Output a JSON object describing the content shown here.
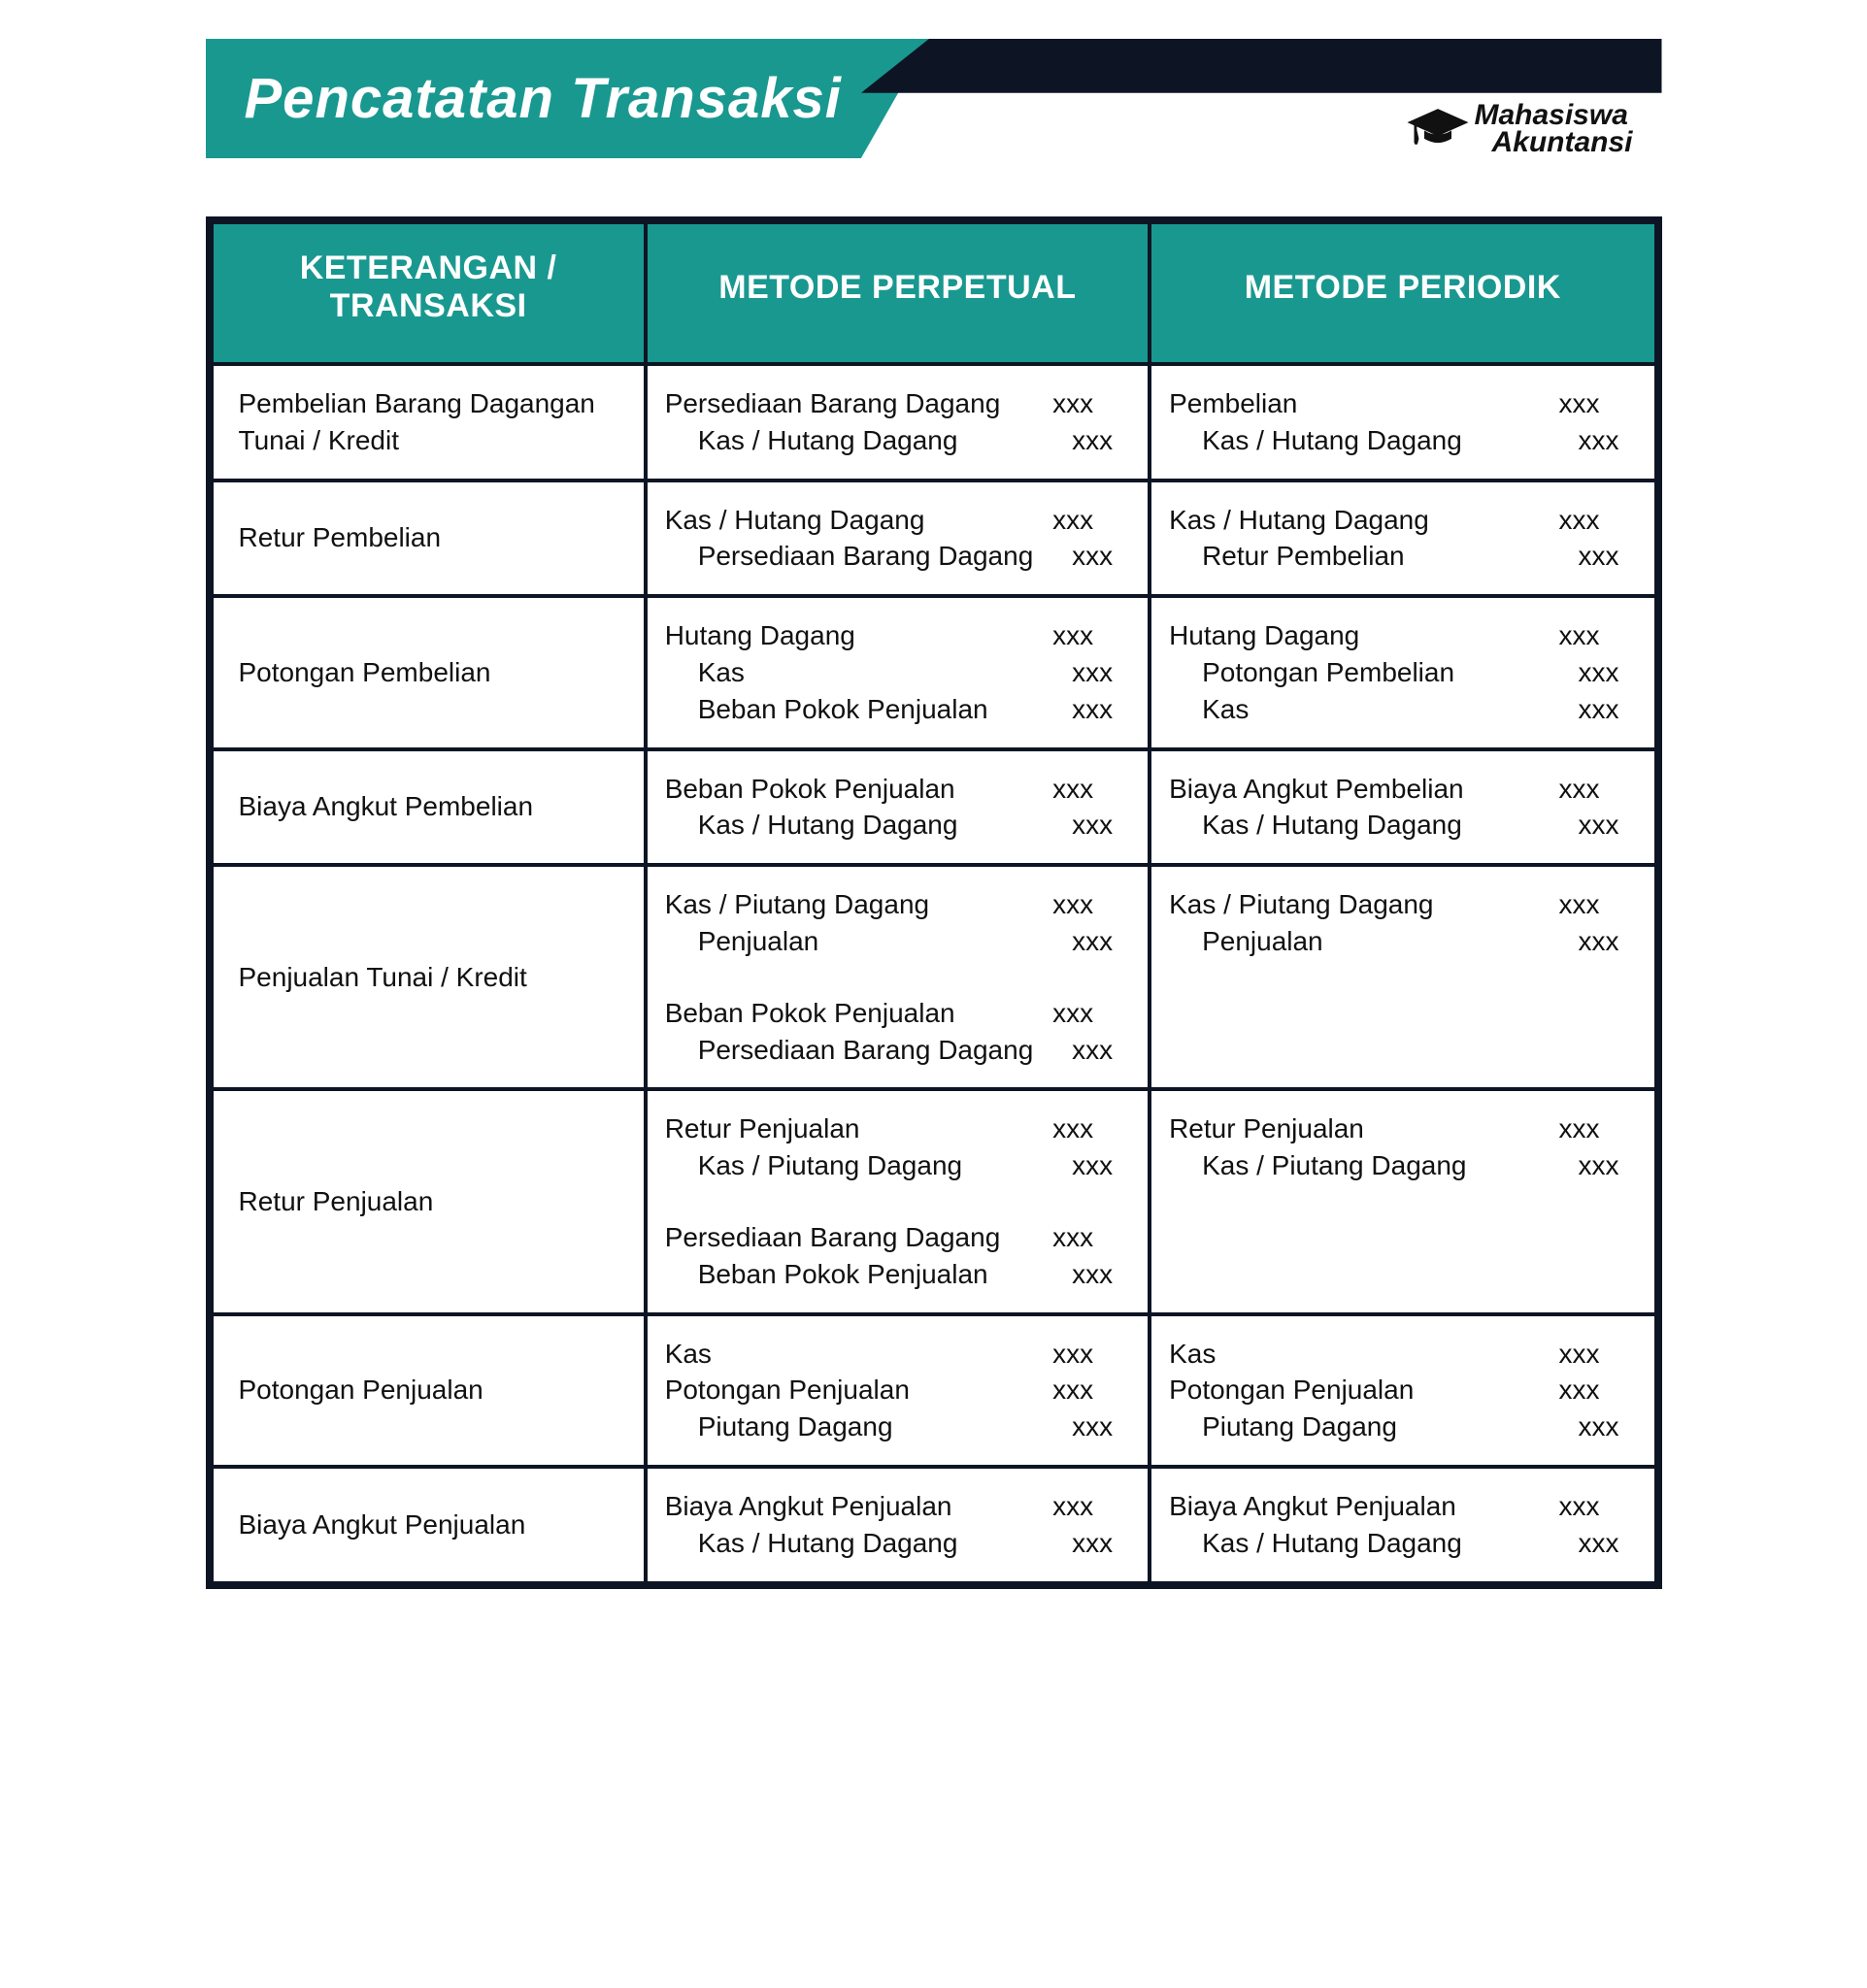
{
  "colors": {
    "teal": "#199890",
    "dark": "#0d1524",
    "white": "#ffffff",
    "text": "#111111"
  },
  "header": {
    "title": "Pencatatan Transaksi",
    "logo_line1": "Mahasiswa",
    "logo_line2": "Akuntansi"
  },
  "table": {
    "columns": [
      "KETERANGAN / TRANSAKSI",
      "METODE PERPETUAL",
      "METODE PERIODIK"
    ],
    "placeholder": "xxx",
    "rows": [
      {
        "transaction": "Pembelian Barang Dagangan Tunai / Kredit",
        "perpetual": [
          [
            {
              "acct": "Persediaan Barang Dagang",
              "side": "debit"
            },
            {
              "acct": "Kas / Hutang Dagang",
              "side": "credit"
            }
          ]
        ],
        "periodic": [
          [
            {
              "acct": "Pembelian",
              "side": "debit"
            },
            {
              "acct": "Kas / Hutang Dagang",
              "side": "credit"
            }
          ]
        ]
      },
      {
        "transaction": "Retur Pembelian",
        "perpetual": [
          [
            {
              "acct": "Kas / Hutang Dagang",
              "side": "debit"
            },
            {
              "acct": "Persediaan Barang Dagang",
              "side": "credit"
            }
          ]
        ],
        "periodic": [
          [
            {
              "acct": "Kas / Hutang Dagang",
              "side": "debit"
            },
            {
              "acct": "Retur Pembelian",
              "side": "credit"
            }
          ]
        ]
      },
      {
        "transaction": "Potongan Pembelian",
        "perpetual": [
          [
            {
              "acct": "Hutang Dagang",
              "side": "debit"
            },
            {
              "acct": "Kas",
              "side": "credit"
            },
            {
              "acct": "Beban Pokok Penjualan",
              "side": "credit"
            }
          ]
        ],
        "periodic": [
          [
            {
              "acct": "Hutang Dagang",
              "side": "debit"
            },
            {
              "acct": "Potongan Pembelian",
              "side": "credit"
            },
            {
              "acct": "Kas",
              "side": "credit"
            }
          ]
        ]
      },
      {
        "transaction": "Biaya Angkut Pembelian",
        "perpetual": [
          [
            {
              "acct": "Beban Pokok Penjualan",
              "side": "debit"
            },
            {
              "acct": "Kas / Hutang Dagang",
              "side": "credit"
            }
          ]
        ],
        "periodic": [
          [
            {
              "acct": "Biaya Angkut Pembelian",
              "side": "debit"
            },
            {
              "acct": "Kas / Hutang Dagang",
              "side": "credit"
            }
          ]
        ]
      },
      {
        "transaction": "Penjualan Tunai / Kredit",
        "perpetual": [
          [
            {
              "acct": "Kas / Piutang Dagang",
              "side": "debit"
            },
            {
              "acct": "Penjualan",
              "side": "credit"
            }
          ],
          [
            {
              "acct": "Beban Pokok Penjualan",
              "side": "debit"
            },
            {
              "acct": "Persediaan Barang Dagang",
              "side": "credit"
            }
          ]
        ],
        "periodic": [
          [
            {
              "acct": "Kas / Piutang Dagang",
              "side": "debit"
            },
            {
              "acct": "Penjualan",
              "side": "credit"
            }
          ]
        ]
      },
      {
        "transaction": "Retur Penjualan",
        "perpetual": [
          [
            {
              "acct": "Retur Penjualan",
              "side": "debit"
            },
            {
              "acct": "Kas / Piutang Dagang",
              "side": "credit"
            }
          ],
          [
            {
              "acct": "Persediaan Barang Dagang",
              "side": "debit"
            },
            {
              "acct": "Beban Pokok Penjualan",
              "side": "credit"
            }
          ]
        ],
        "periodic": [
          [
            {
              "acct": "Retur Penjualan",
              "side": "debit"
            },
            {
              "acct": "Kas / Piutang Dagang",
              "side": "credit"
            }
          ]
        ]
      },
      {
        "transaction": "Potongan Penjualan",
        "perpetual": [
          [
            {
              "acct": "Kas",
              "side": "debit"
            },
            {
              "acct": "Potongan Penjualan",
              "side": "debit"
            },
            {
              "acct": "Piutang Dagang",
              "side": "credit"
            }
          ]
        ],
        "periodic": [
          [
            {
              "acct": "Kas",
              "side": "debit"
            },
            {
              "acct": "Potongan Penjualan",
              "side": "debit"
            },
            {
              "acct": "Piutang Dagang",
              "side": "credit"
            }
          ]
        ]
      },
      {
        "transaction": "Biaya Angkut Penjualan",
        "perpetual": [
          [
            {
              "acct": "Biaya Angkut Penjualan",
              "side": "debit"
            },
            {
              "acct": "Kas / Hutang Dagang",
              "side": "credit"
            }
          ]
        ],
        "periodic": [
          [
            {
              "acct": "Biaya Angkut Penjualan",
              "side": "debit"
            },
            {
              "acct": "Kas / Hutang Dagang",
              "side": "credit"
            }
          ]
        ]
      }
    ]
  }
}
